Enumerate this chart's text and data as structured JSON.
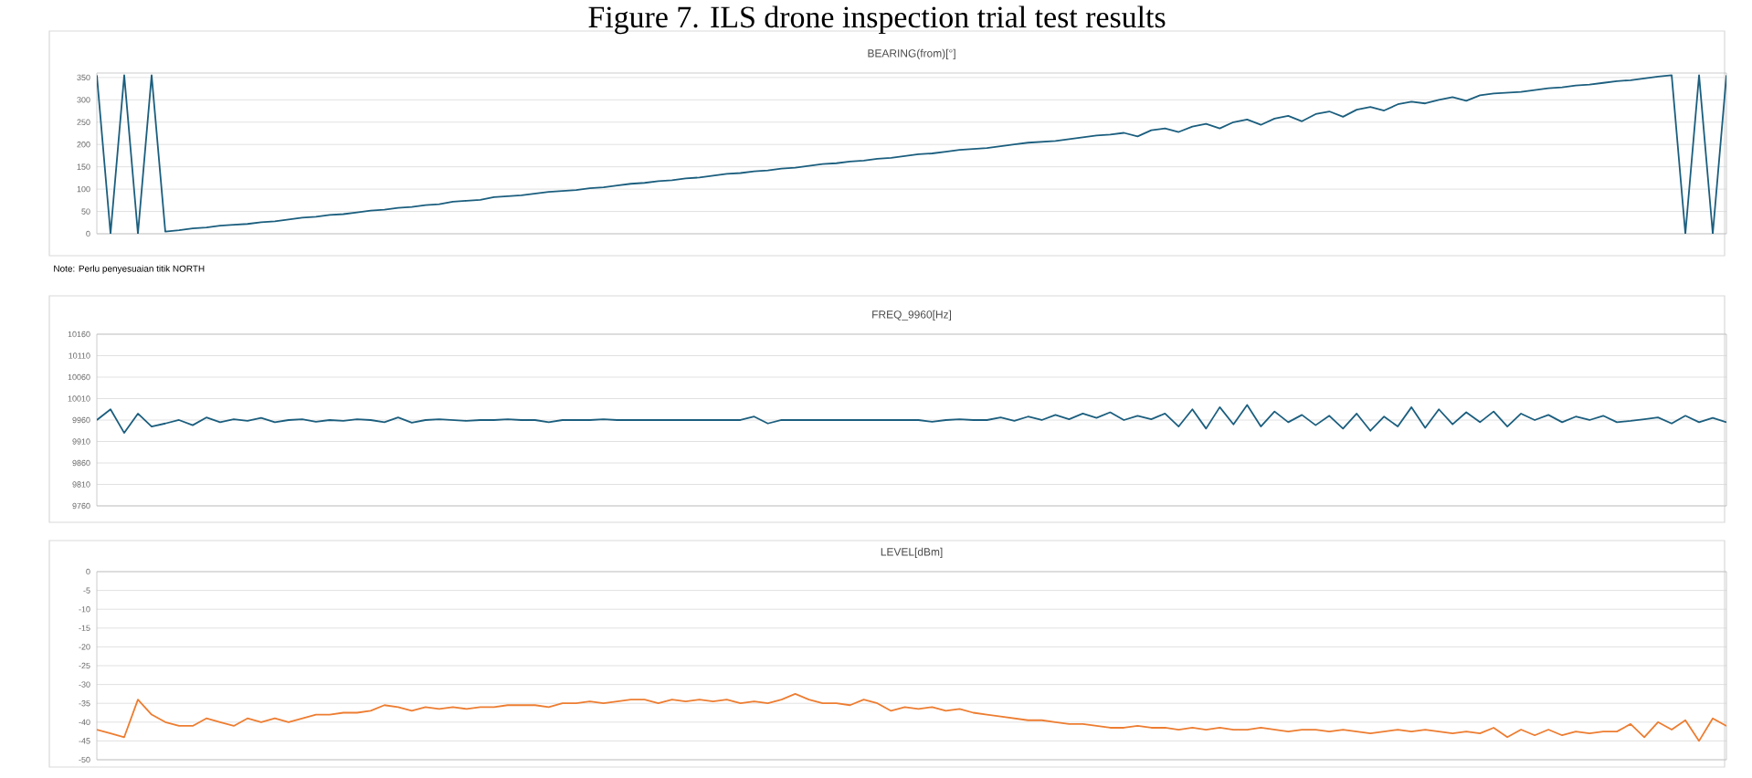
{
  "chart_data": [
    {
      "type": "line",
      "title": "BEARING(from)[°]",
      "color": "#1b5e7e",
      "annotations": [
        "Figure 7. ILS drone inspection trial test results",
        "Note: Perlu penyesuaian titik NORTH"
      ],
      "categories": [
        null,
        null,
        null,
        null,
        null,
        null,
        null,
        null,
        null,
        null,
        null,
        null,
        null,
        null,
        null,
        null,
        null,
        null,
        null,
        null,
        null,
        null,
        null,
        null,
        null,
        null,
        null,
        null,
        null,
        null,
        null,
        null,
        null,
        null,
        null,
        null,
        null,
        null,
        null,
        null,
        null,
        null,
        null,
        null,
        null,
        null,
        null,
        null,
        null,
        null,
        null,
        null,
        null,
        null,
        null,
        null,
        null,
        null,
        null,
        null,
        null,
        null,
        null,
        null,
        null,
        null,
        null,
        null,
        null,
        null,
        null,
        null,
        null,
        null,
        null,
        null,
        null,
        null,
        null,
        null,
        null,
        null,
        null,
        null,
        null,
        null,
        null,
        null,
        null,
        null,
        null,
        null,
        null,
        null,
        null,
        null,
        null,
        null,
        null,
        null,
        null,
        null,
        null,
        null,
        null,
        null,
        null,
        null,
        null,
        null,
        null,
        null,
        null,
        null,
        null,
        null,
        null,
        null,
        null,
        null
      ],
      "values": [
        355,
        0,
        355,
        0,
        355,
        5,
        8,
        12,
        14,
        18,
        20,
        22,
        26,
        28,
        32,
        36,
        38,
        42,
        44,
        48,
        52,
        54,
        58,
        60,
        64,
        66,
        72,
        74,
        76,
        82,
        84,
        86,
        90,
        94,
        96,
        98,
        102,
        104,
        108,
        112,
        114,
        118,
        120,
        124,
        126,
        130,
        134,
        136,
        140,
        142,
        146,
        148,
        152,
        156,
        158,
        162,
        164,
        168,
        170,
        174,
        178,
        180,
        184,
        188,
        190,
        192,
        196,
        200,
        204,
        206,
        208,
        212,
        216,
        220,
        222,
        226,
        218,
        232,
        236,
        228,
        240,
        246,
        236,
        250,
        256,
        244,
        258,
        264,
        252,
        268,
        274,
        262,
        278,
        284,
        276,
        290,
        296,
        292,
        300,
        306,
        298,
        310,
        314,
        316,
        318,
        322,
        326,
        328,
        332,
        334,
        338,
        342,
        344,
        348,
        352,
        355,
        0,
        355,
        0,
        355
      ],
      "ylim": [
        0,
        360
      ],
      "yticks": [
        0,
        50,
        100,
        150,
        200,
        250,
        300,
        350
      ],
      "grid": "y",
      "tick_labels": "y"
    },
    {
      "type": "line",
      "title": "FREQ_9960[Hz]",
      "color": "#1b5e7e",
      "categories": [
        null,
        null,
        null,
        null,
        null,
        null,
        null,
        null,
        null,
        null,
        null,
        null,
        null,
        null,
        null,
        null,
        null,
        null,
        null,
        null,
        null,
        null,
        null,
        null,
        null,
        null,
        null,
        null,
        null,
        null,
        null,
        null,
        null,
        null,
        null,
        null,
        null,
        null,
        null,
        null,
        null,
        null,
        null,
        null,
        null,
        null,
        null,
        null,
        null,
        null,
        null,
        null,
        null,
        null,
        null,
        null,
        null,
        null,
        null,
        null,
        null,
        null,
        null,
        null,
        null,
        null,
        null,
        null,
        null,
        null,
        null,
        null,
        null,
        null,
        null,
        null,
        null,
        null,
        null,
        null,
        null,
        null,
        null,
        null,
        null,
        null,
        null,
        null,
        null,
        null,
        null,
        null,
        null,
        null,
        null,
        null,
        null,
        null,
        null,
        null,
        null,
        null,
        null,
        null,
        null,
        null,
        null,
        null,
        null,
        null,
        null,
        null,
        null,
        null,
        null,
        null,
        null,
        null,
        null,
        null
      ],
      "values": [
        9960,
        9985,
        9930,
        9975,
        9945,
        9952,
        9960,
        9948,
        9966,
        9955,
        9962,
        9958,
        9965,
        9955,
        9960,
        9962,
        9956,
        9960,
        9958,
        9962,
        9960,
        9955,
        9966,
        9954,
        9960,
        9962,
        9960,
        9958,
        9960,
        9960,
        9962,
        9960,
        9960,
        9955,
        9960,
        9960,
        9960,
        9962,
        9960,
        9960,
        9960,
        9960,
        9960,
        9960,
        9960,
        9960,
        9960,
        9960,
        9968,
        9952,
        9960,
        9960,
        9960,
        9960,
        9960,
        9960,
        9960,
        9960,
        9960,
        9960,
        9960,
        9956,
        9960,
        9962,
        9960,
        9960,
        9966,
        9958,
        9968,
        9960,
        9972,
        9962,
        9975,
        9965,
        9978,
        9960,
        9970,
        9962,
        9975,
        9945,
        9985,
        9940,
        9990,
        9950,
        9995,
        9945,
        9980,
        9955,
        9972,
        9948,
        9970,
        9940,
        9975,
        9935,
        9968,
        9945,
        9990,
        9942,
        9985,
        9950,
        9978,
        9955,
        9980,
        9945,
        9975,
        9960,
        9972,
        9955,
        9968,
        9960,
        9970,
        9955,
        9958,
        9962,
        9966,
        9952,
        9970,
        9955,
        9965,
        9955
      ],
      "ylim": [
        9760,
        10160
      ],
      "yticks": [
        9760,
        9810,
        9860,
        9910,
        9960,
        10010,
        10060,
        10110,
        10160
      ],
      "grid": "y",
      "tick_labels": "y"
    },
    {
      "type": "line",
      "title": "LEVEL[dBm]",
      "color": "#ed7d31",
      "categories": [
        null,
        null,
        null,
        null,
        null,
        null,
        null,
        null,
        null,
        null,
        null,
        null,
        null,
        null,
        null,
        null,
        null,
        null,
        null,
        null,
        null,
        null,
        null,
        null,
        null,
        null,
        null,
        null,
        null,
        null,
        null,
        null,
        null,
        null,
        null,
        null,
        null,
        null,
        null,
        null,
        null,
        null,
        null,
        null,
        null,
        null,
        null,
        null,
        null,
        null,
        null,
        null,
        null,
        null,
        null,
        null,
        null,
        null,
        null,
        null,
        null,
        null,
        null,
        null,
        null,
        null,
        null,
        null,
        null,
        null,
        null,
        null,
        null,
        null,
        null,
        null,
        null,
        null,
        null,
        null,
        null,
        null,
        null,
        null,
        null,
        null,
        null,
        null,
        null,
        null,
        null,
        null,
        null,
        null,
        null,
        null,
        null,
        null,
        null,
        null,
        null,
        null,
        null,
        null,
        null,
        null,
        null,
        null,
        null,
        null,
        null,
        null,
        null,
        null,
        null,
        null,
        null,
        null,
        null,
        null
      ],
      "values": [
        -42,
        -43,
        -44,
        -34,
        -38,
        -40,
        -41,
        -41,
        -39,
        -40,
        -41,
        -39,
        -40,
        -39,
        -40,
        -39,
        -38,
        -38,
        -37.5,
        -37.5,
        -37,
        -35.5,
        -36,
        -37,
        -36,
        -36.5,
        -36,
        -36.5,
        -36,
        -36,
        -35.5,
        -35.5,
        -35.5,
        -36,
        -35,
        -35,
        -34.5,
        -35,
        -34.5,
        -34,
        -34,
        -35,
        -34,
        -34.5,
        -34,
        -34.5,
        -34,
        -35,
        -34.5,
        -35,
        -34,
        -32.5,
        -34,
        -35,
        -35,
        -35.5,
        -34,
        -35,
        -37,
        -36,
        -36.5,
        -36,
        -37,
        -36.5,
        -37.5,
        -38,
        -38.5,
        -39,
        -39.5,
        -39.5,
        -40,
        -40.5,
        -40.5,
        -41,
        -41.5,
        -41.5,
        -41,
        -41.5,
        -41.5,
        -42,
        -41.5,
        -42,
        -41.5,
        -42,
        -42,
        -41.5,
        -42,
        -42.5,
        -42,
        -42,
        -42.5,
        -42,
        -42.5,
        -43,
        -42.5,
        -42,
        -42.5,
        -42,
        -42.5,
        -43,
        -42.5,
        -43,
        -41.5,
        -44,
        -42,
        -43.5,
        -42,
        -43.5,
        -42.5,
        -43,
        -42.5,
        -42.5,
        -40.5,
        -44,
        -40,
        -42,
        -39.5,
        -45,
        -39,
        -41
      ],
      "ylim": [
        -50,
        0
      ],
      "yticks": [
        -50,
        -45,
        -40,
        -35,
        -30,
        -25,
        -20,
        -15,
        -10,
        -5,
        0
      ],
      "grid": "y",
      "tick_labels": "y"
    }
  ]
}
